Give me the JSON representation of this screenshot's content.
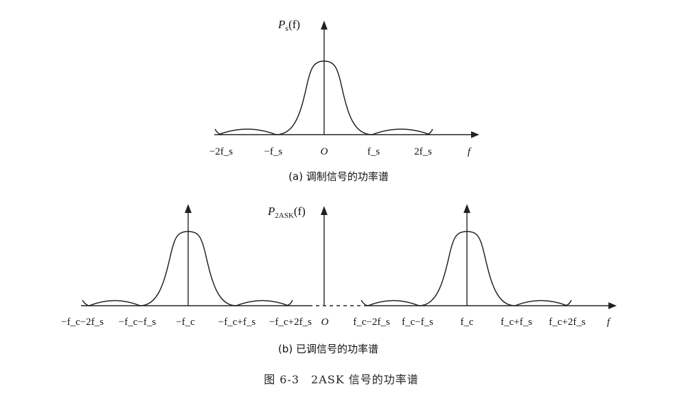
{
  "top_panel": {
    "y_label": {
      "main": "P",
      "sub": "s",
      "arg": "(f)"
    },
    "x_axis_label": "f",
    "ticks": [
      "−2f_s",
      "−f_s",
      "O",
      "f_s",
      "2f_s"
    ],
    "caption": "(a) 调制信号的功率谱"
  },
  "bottom_panel": {
    "y_label": {
      "main": "P",
      "sub": "2ASK",
      "arg": "(f)"
    },
    "x_axis_label": "f",
    "ticks": [
      "−f_c−2f_s",
      "−f_c−f_s",
      "−f_c",
      "−f_c+f_s",
      "−f_c+2f_s",
      "O",
      "f_c−2f_s",
      "f_c−f_s",
      "f_c",
      "f_c+f_s",
      "f_c+2f_s"
    ],
    "caption": "(b) 已调信号的功率谱"
  },
  "figure_caption": "图 6-3　2ASK 信号的功率谱"
}
